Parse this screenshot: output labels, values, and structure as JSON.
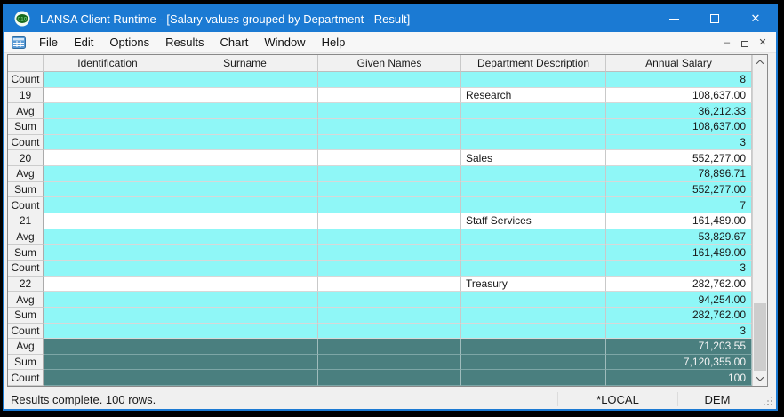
{
  "window": {
    "title": "LANSA Client Runtime - [Salary values grouped by Department - Result]",
    "controls": {
      "minimize_glyph": "",
      "close_glyph": "✕"
    }
  },
  "menu_bar": {
    "items": [
      "File",
      "Edit",
      "Options",
      "Results",
      "Chart",
      "Window",
      "Help"
    ],
    "mdi_controls": {
      "minimize_glyph": "–",
      "close_glyph": "✕"
    }
  },
  "grid": {
    "columns": [
      "",
      "Identification",
      "Surname",
      "Given Names",
      "Department Description",
      "Annual Salary"
    ],
    "rows": [
      {
        "header": "Count",
        "department": "",
        "salary": "8",
        "style": "agg"
      },
      {
        "header": "19",
        "department": "Research",
        "salary": "108,637.00",
        "style": "detail"
      },
      {
        "header": "Avg",
        "department": "",
        "salary": "36,212.33",
        "style": "agg"
      },
      {
        "header": "Sum",
        "department": "",
        "salary": "108,637.00",
        "style": "agg"
      },
      {
        "header": "Count",
        "department": "",
        "salary": "3",
        "style": "agg"
      },
      {
        "header": "20",
        "department": "Sales",
        "salary": "552,277.00",
        "style": "detail"
      },
      {
        "header": "Avg",
        "department": "",
        "salary": "78,896.71",
        "style": "agg"
      },
      {
        "header": "Sum",
        "department": "",
        "salary": "552,277.00",
        "style": "agg"
      },
      {
        "header": "Count",
        "department": "",
        "salary": "7",
        "style": "agg"
      },
      {
        "header": "21",
        "department": "Staff Services",
        "salary": "161,489.00",
        "style": "detail"
      },
      {
        "header": "Avg",
        "department": "",
        "salary": "53,829.67",
        "style": "agg"
      },
      {
        "header": "Sum",
        "department": "",
        "salary": "161,489.00",
        "style": "agg"
      },
      {
        "header": "Count",
        "department": "",
        "salary": "3",
        "style": "agg"
      },
      {
        "header": "22",
        "department": "Treasury",
        "salary": "282,762.00",
        "style": "detail"
      },
      {
        "header": "Avg",
        "department": "",
        "salary": "94,254.00",
        "style": "agg"
      },
      {
        "header": "Sum",
        "department": "",
        "salary": "282,762.00",
        "style": "agg"
      },
      {
        "header": "Count",
        "department": "",
        "salary": "3",
        "style": "agg"
      },
      {
        "header": "Avg",
        "department": "",
        "salary": "71,203.55",
        "style": "total"
      },
      {
        "header": "Sum",
        "department": "",
        "salary": "7,120,355.00",
        "style": "total"
      },
      {
        "header": "Count",
        "department": "",
        "salary": "100",
        "style": "total"
      }
    ]
  },
  "status_bar": {
    "message": "Results complete. 100 rows.",
    "partition": "*LOCAL",
    "user": "DEM"
  },
  "colors": {
    "titlebar": "#1b7ad3",
    "aggregate_row": "#8ff7f7",
    "grand_total_row": "#4a7f7f",
    "header_bg": "#f1f1f1"
  }
}
